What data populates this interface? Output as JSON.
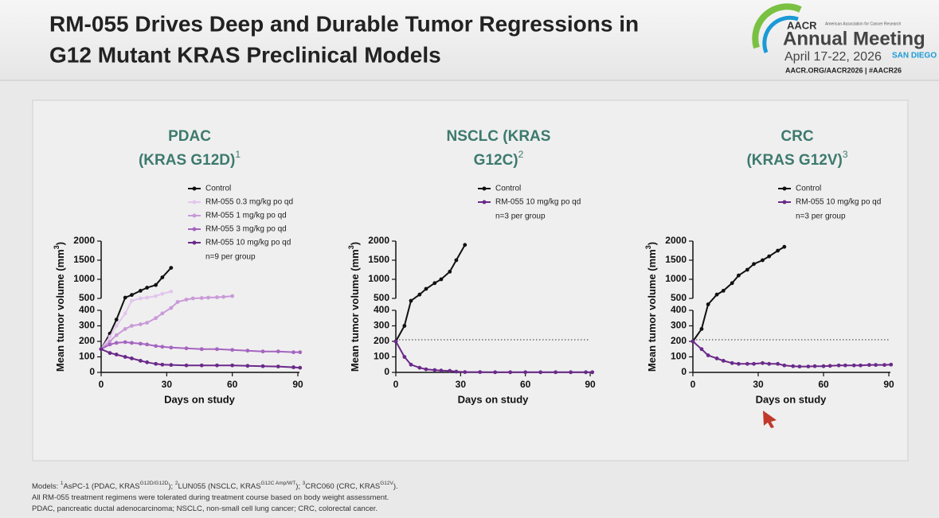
{
  "header": {
    "title_lines": [
      "RM-055 Drives Deep and Durable Tumor Regressions in",
      "G12 Mutant KRAS Preclinical Models"
    ],
    "logo": {
      "brand": "AACR",
      "org": "American Association for Cancer Research",
      "event": "Annual Meeting",
      "dates": "April 17-22, 2026",
      "city": "SAN DIEGO",
      "links": "AACR.ORG/AACR2026  |  #AACR26"
    }
  },
  "chart_data": [
    {
      "type": "line",
      "title_lines": [
        "PDAC",
        "(KRAS G12D)"
      ],
      "title_note": "1",
      "note": "n=9 per group",
      "xlabel": "Days on study",
      "ylabel": "Mean tumor volume (mm",
      "ylabel_sup": "3",
      "ylabel_end": ")",
      "xlim": [
        0,
        90
      ],
      "xticks": [
        0,
        30,
        60,
        90
      ],
      "ylim": [
        0,
        2000
      ],
      "axis_break": [
        400,
        500
      ],
      "yticks": [
        0,
        100,
        200,
        300,
        400,
        500,
        1000,
        1500,
        2000
      ],
      "series": [
        {
          "name": "Control",
          "color": "#111111",
          "x": [
            0,
            4,
            7,
            11,
            14,
            18,
            21,
            25,
            28,
            32
          ],
          "values": [
            150,
            250,
            340,
            520,
            590,
            700,
            780,
            850,
            1050,
            1300
          ]
        },
        {
          "name": "RM-055 0.3 mg/kg po qd",
          "color": "#e2c6ec",
          "x": [
            0,
            4,
            7,
            11,
            14,
            18,
            21,
            25,
            28,
            32
          ],
          "values": [
            150,
            230,
            300,
            380,
            480,
            500,
            520,
            560,
            620,
            680
          ]
        },
        {
          "name": "RM-055 1 mg/kg po qd",
          "color": "#c99ad8",
          "x": [
            0,
            4,
            7,
            11,
            14,
            18,
            21,
            25,
            28,
            32,
            35,
            39,
            42,
            46,
            49,
            53,
            56,
            60
          ],
          "values": [
            150,
            200,
            240,
            280,
            300,
            310,
            320,
            350,
            380,
            420,
            470,
            490,
            500,
            510,
            520,
            530,
            540,
            560
          ]
        },
        {
          "name": "RM-055 3 mg/kg po qd",
          "color": "#a565c0",
          "x": [
            0,
            4,
            7,
            11,
            14,
            18,
            21,
            25,
            28,
            32,
            39,
            46,
            53,
            60,
            67,
            74,
            81,
            88,
            91
          ],
          "values": [
            150,
            180,
            190,
            195,
            190,
            185,
            180,
            170,
            165,
            160,
            155,
            150,
            150,
            145,
            140,
            135,
            135,
            130,
            130
          ]
        },
        {
          "name": "RM-055 10 mg/kg po qd",
          "color": "#6a2a8a",
          "x": [
            0,
            4,
            7,
            11,
            14,
            18,
            21,
            25,
            28,
            32,
            39,
            46,
            53,
            60,
            67,
            74,
            81,
            88,
            91
          ],
          "values": [
            150,
            125,
            115,
            100,
            90,
            75,
            65,
            55,
            50,
            48,
            45,
            45,
            45,
            45,
            42,
            40,
            38,
            33,
            30
          ]
        }
      ]
    },
    {
      "type": "line",
      "title_lines": [
        "NSCLC (KRAS",
        "G12C)"
      ],
      "title_note": "2",
      "note": "n=3 per group",
      "xlabel": "Days on study",
      "ylabel": "Mean tumor volume (mm",
      "ylabel_sup": "3",
      "ylabel_end": ")",
      "xlim": [
        0,
        90
      ],
      "xticks": [
        0,
        30,
        60,
        90
      ],
      "ylim": [
        0,
        2000
      ],
      "axis_break": [
        400,
        500
      ],
      "yticks": [
        0,
        100,
        200,
        300,
        400,
        500,
        1000,
        1500,
        2000
      ],
      "reference_line": 210,
      "series": [
        {
          "name": "Control",
          "color": "#111111",
          "x": [
            0,
            4,
            7,
            11,
            14,
            18,
            21,
            25,
            28,
            32
          ],
          "values": [
            200,
            300,
            480,
            600,
            750,
            900,
            1000,
            1200,
            1500,
            1900
          ]
        },
        {
          "name": "RM-055 10 mg/kg po qd",
          "color": "#6a2a8a",
          "x": [
            0,
            4,
            7,
            11,
            14,
            18,
            21,
            25,
            28,
            32,
            39,
            46,
            53,
            60,
            67,
            74,
            81,
            88,
            91
          ],
          "values": [
            200,
            100,
            50,
            30,
            20,
            15,
            12,
            10,
            5,
            2,
            2,
            1,
            1,
            1,
            1,
            1,
            1,
            1,
            1
          ]
        }
      ]
    },
    {
      "type": "line",
      "title_lines": [
        "CRC",
        "(KRAS G12V)"
      ],
      "title_note": "3",
      "note": "n=3 per group",
      "xlabel": "Days on study",
      "ylabel": "Mean tumor volume (mm",
      "ylabel_sup": "3",
      "ylabel_end": ")",
      "xlim": [
        0,
        90
      ],
      "xticks": [
        0,
        30,
        60,
        90
      ],
      "ylim": [
        0,
        2000
      ],
      "axis_break": [
        400,
        500
      ],
      "yticks": [
        0,
        100,
        200,
        300,
        400,
        500,
        1000,
        1500,
        2000
      ],
      "reference_line": 210,
      "series": [
        {
          "name": "Control",
          "color": "#111111",
          "x": [
            0,
            4,
            7,
            11,
            14,
            18,
            21,
            25,
            28,
            32,
            35,
            39,
            42
          ],
          "values": [
            200,
            280,
            450,
            600,
            700,
            900,
            1100,
            1250,
            1400,
            1500,
            1600,
            1750,
            1850
          ]
        },
        {
          "name": "RM-055 10 mg/kg po qd",
          "color": "#6a2a8a",
          "x": [
            0,
            4,
            7,
            11,
            14,
            18,
            21,
            25,
            28,
            32,
            35,
            39,
            42,
            46,
            49,
            53,
            56,
            60,
            63,
            67,
            70,
            74,
            77,
            81,
            84,
            88,
            91
          ],
          "values": [
            200,
            150,
            110,
            90,
            75,
            60,
            55,
            55,
            55,
            60,
            55,
            55,
            45,
            40,
            38,
            38,
            40,
            40,
            42,
            45,
            45,
            45,
            45,
            48,
            48,
            48,
            50
          ]
        }
      ]
    }
  ],
  "footnotes": [
    [
      {
        "text": "Models: "
      },
      {
        "sup": "1"
      },
      {
        "text": "AsPC-1 (PDAC, KRAS"
      },
      {
        "sup": "G12D/G12D"
      },
      {
        "text": "); "
      },
      {
        "sup": "2"
      },
      {
        "text": "LUN055 (NSCLC, KRAS"
      },
      {
        "sup": "G12C Amp/WT"
      },
      {
        "text": "); "
      },
      {
        "sup": "3"
      },
      {
        "text": "CRC060 (CRC, KRAS"
      },
      {
        "sup": "G12V"
      },
      {
        "text": ")."
      }
    ],
    [
      {
        "text": "All RM-055 treatment regimens were tolerated during treatment course based on body weight assessment."
      }
    ],
    [
      {
        "text": "PDAC, pancreatic ductal adenocarcinoma; NSCLC, non-small cell lung cancer; CRC, colorectal cancer."
      }
    ]
  ]
}
